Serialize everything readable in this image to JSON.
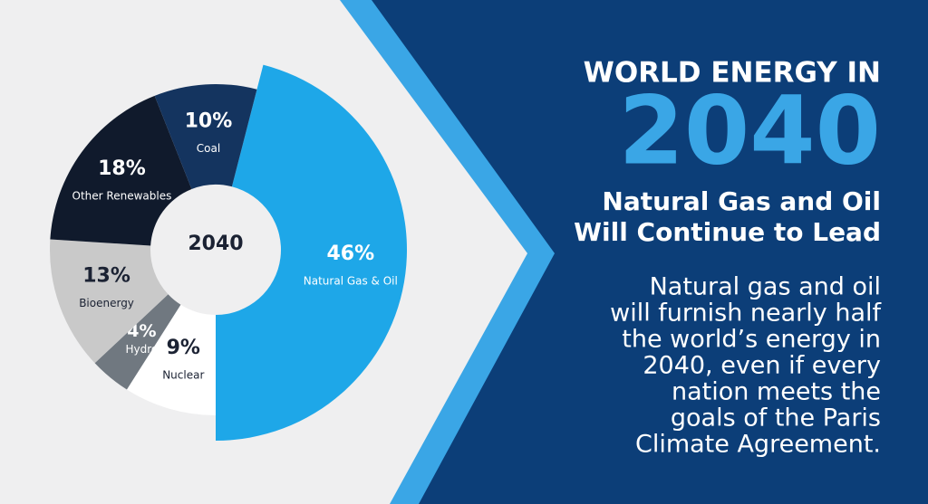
{
  "chart_data": {
    "type": "pie",
    "donut": true,
    "center_label": "2040",
    "categories": [
      "Natural Gas & Oil",
      "Nuclear",
      "Hydro",
      "Bioenergy",
      "Other Renewables",
      "Coal"
    ],
    "values": [
      46,
      9,
      4,
      13,
      18,
      10
    ],
    "value_labels": [
      "46%",
      "9%",
      "4%",
      "13%",
      "18%",
      "10%"
    ],
    "colors": [
      "#1ea7e8",
      "#ffffff",
      "#707880",
      "#c9c9c9",
      "#101a2c",
      "#14345f"
    ]
  },
  "panel": {
    "heading": "WORLD ENERGY IN",
    "year": "2040",
    "subheading": [
      "Natural Gas and Oil",
      "Will Continue to Lead"
    ],
    "body": [
      "Natural gas and oil",
      "will furnish nearly half",
      "the world’s energy in",
      "2040, even if every",
      "nation meets the",
      "goals of the Paris",
      "Climate Agreement."
    ]
  }
}
